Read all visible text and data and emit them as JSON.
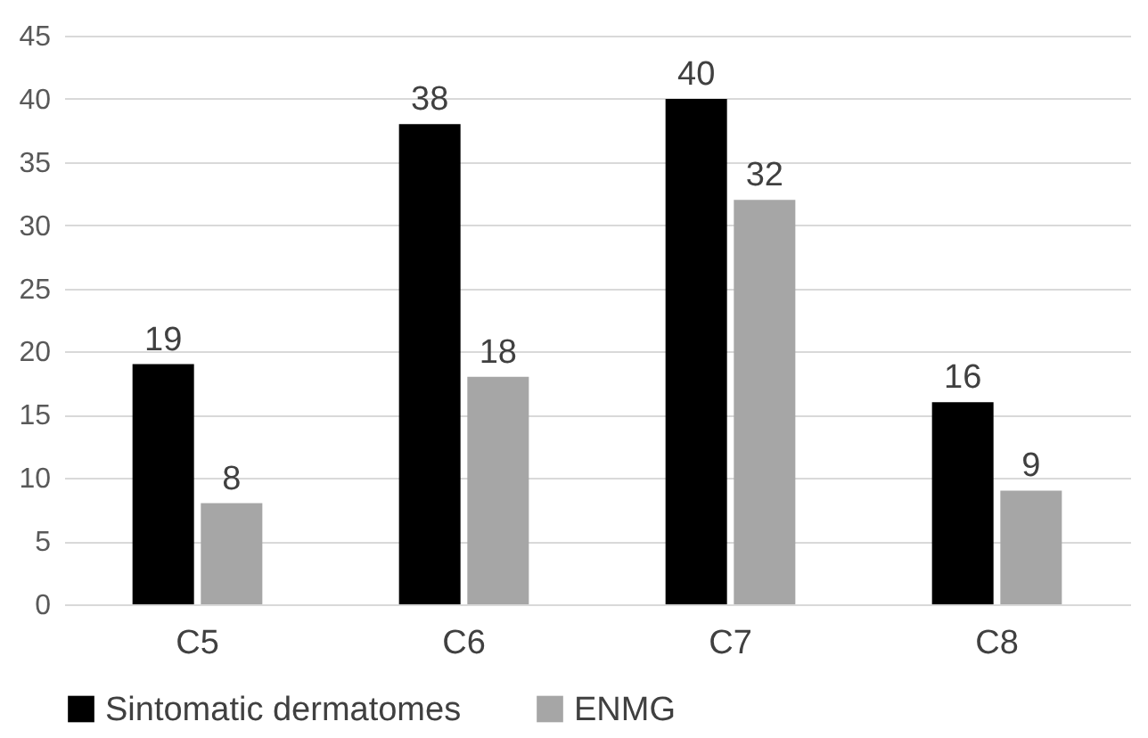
{
  "chart_data": {
    "type": "bar",
    "categories": [
      "C5",
      "C6",
      "C7",
      "C8"
    ],
    "series": [
      {
        "name": "Sintomatic dermatomes",
        "color": "#000000",
        "values": [
          19,
          38,
          40,
          16
        ]
      },
      {
        "name": "ENMG",
        "color": "#a6a6a6",
        "values": [
          8,
          18,
          32,
          9
        ]
      }
    ],
    "ylim": [
      0,
      45
    ],
    "yticks": [
      0,
      5,
      10,
      15,
      20,
      25,
      30,
      35,
      40,
      45
    ],
    "grid": "y",
    "legend": "bottom",
    "data_labels": true
  }
}
